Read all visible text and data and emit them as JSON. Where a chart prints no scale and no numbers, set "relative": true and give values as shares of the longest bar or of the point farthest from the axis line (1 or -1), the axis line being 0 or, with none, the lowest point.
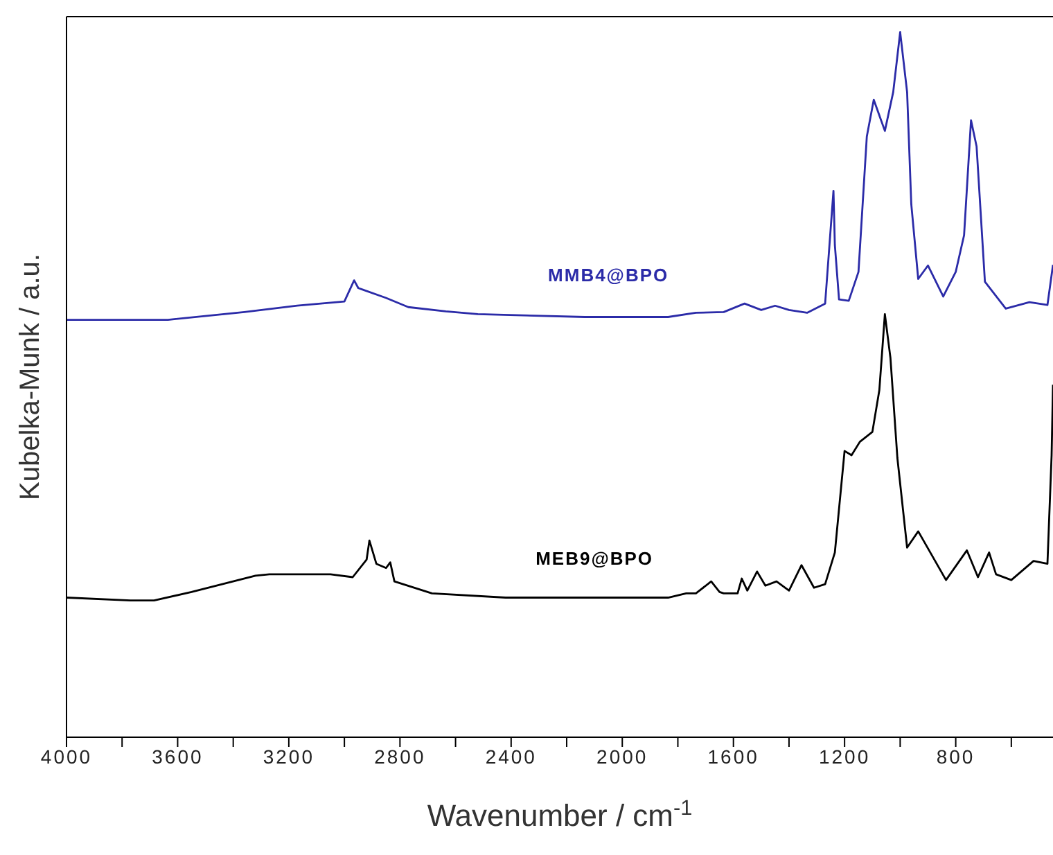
{
  "chart_data": {
    "type": "line",
    "xlabel": "Wavenumber / cm$^{-1}$",
    "ylabel": "Kubelka-Munk / a.u.",
    "relative": true,
    "xlim": [
      4000,
      450
    ],
    "xticks": [
      4000,
      {
        "value": 3800,
        "label": null
      },
      3600,
      {
        "value": 3400,
        "label": null
      },
      3200,
      {
        "value": 3000,
        "label": null
      },
      2800,
      {
        "value": 2600,
        "label": null
      },
      2400,
      {
        "value": 2200,
        "label": null
      },
      2000,
      {
        "value": 1800,
        "label": null
      },
      1600,
      {
        "value": 1400,
        "label": null
      },
      1200,
      {
        "value": 1000,
        "label": null
      },
      800,
      {
        "value": 600,
        "label": null
      }
    ],
    "grid": false,
    "legend": false,
    "marker": "none",
    "line_style": "solid",
    "series": [
      {
        "name": "MMB4@BPO",
        "color": "#2b2ba8",
        "x": [
          4000,
          3635,
          3360,
          3170,
          3000,
          2965,
          2950,
          2935,
          2850,
          2770,
          2635,
          2520,
          2135,
          1835,
          1735,
          1635,
          1560,
          1500,
          1450,
          1400,
          1335,
          1270,
          1240,
          1235,
          1220,
          1185,
          1150,
          1120,
          1095,
          1055,
          1025,
          1000,
          975,
          960,
          935,
          900,
          845,
          800,
          770,
          745,
          725,
          695,
          620,
          535,
          470,
          450
        ],
        "values": [
          0.592,
          0.592,
          0.603,
          0.612,
          0.618,
          0.648,
          0.637,
          0.635,
          0.623,
          0.61,
          0.604,
          0.6,
          0.596,
          0.596,
          0.602,
          0.603,
          0.615,
          0.606,
          0.612,
          0.606,
          0.602,
          0.615,
          0.775,
          0.698,
          0.621,
          0.619,
          0.66,
          0.852,
          0.904,
          0.86,
          0.915,
          1,
          0.915,
          0.756,
          0.65,
          0.669,
          0.625,
          0.66,
          0.712,
          0.875,
          0.838,
          0.646,
          0.608,
          0.617,
          0.613,
          0.67
        ]
      },
      {
        "name": "MEB9@BPO",
        "color": "#000000",
        "x": [
          4000,
          3770,
          3685,
          3550,
          3320,
          3270,
          3050,
          2970,
          2920,
          2910,
          2885,
          2850,
          2835,
          2820,
          2685,
          2420,
          1835,
          1770,
          1735,
          1680,
          1650,
          1635,
          1585,
          1570,
          1550,
          1515,
          1485,
          1445,
          1400,
          1355,
          1310,
          1270,
          1235,
          1200,
          1175,
          1145,
          1100,
          1075,
          1055,
          1035,
          1010,
          975,
          935,
          835,
          760,
          720,
          680,
          655,
          600,
          520,
          470,
          455,
          450
        ],
        "values": [
          0.198,
          0.194,
          0.194,
          0.206,
          0.229,
          0.231,
          0.231,
          0.227,
          0.252,
          0.279,
          0.246,
          0.24,
          0.248,
          0.221,
          0.204,
          0.198,
          0.198,
          0.204,
          0.204,
          0.221,
          0.206,
          0.204,
          0.204,
          0.225,
          0.208,
          0.235,
          0.215,
          0.221,
          0.208,
          0.244,
          0.212,
          0.217,
          0.262,
          0.406,
          0.4,
          0.419,
          0.433,
          0.492,
          0.6,
          0.538,
          0.396,
          0.269,
          0.292,
          0.223,
          0.265,
          0.227,
          0.262,
          0.231,
          0.223,
          0.25,
          0.246,
          0.4,
          0.5
        ]
      }
    ]
  }
}
